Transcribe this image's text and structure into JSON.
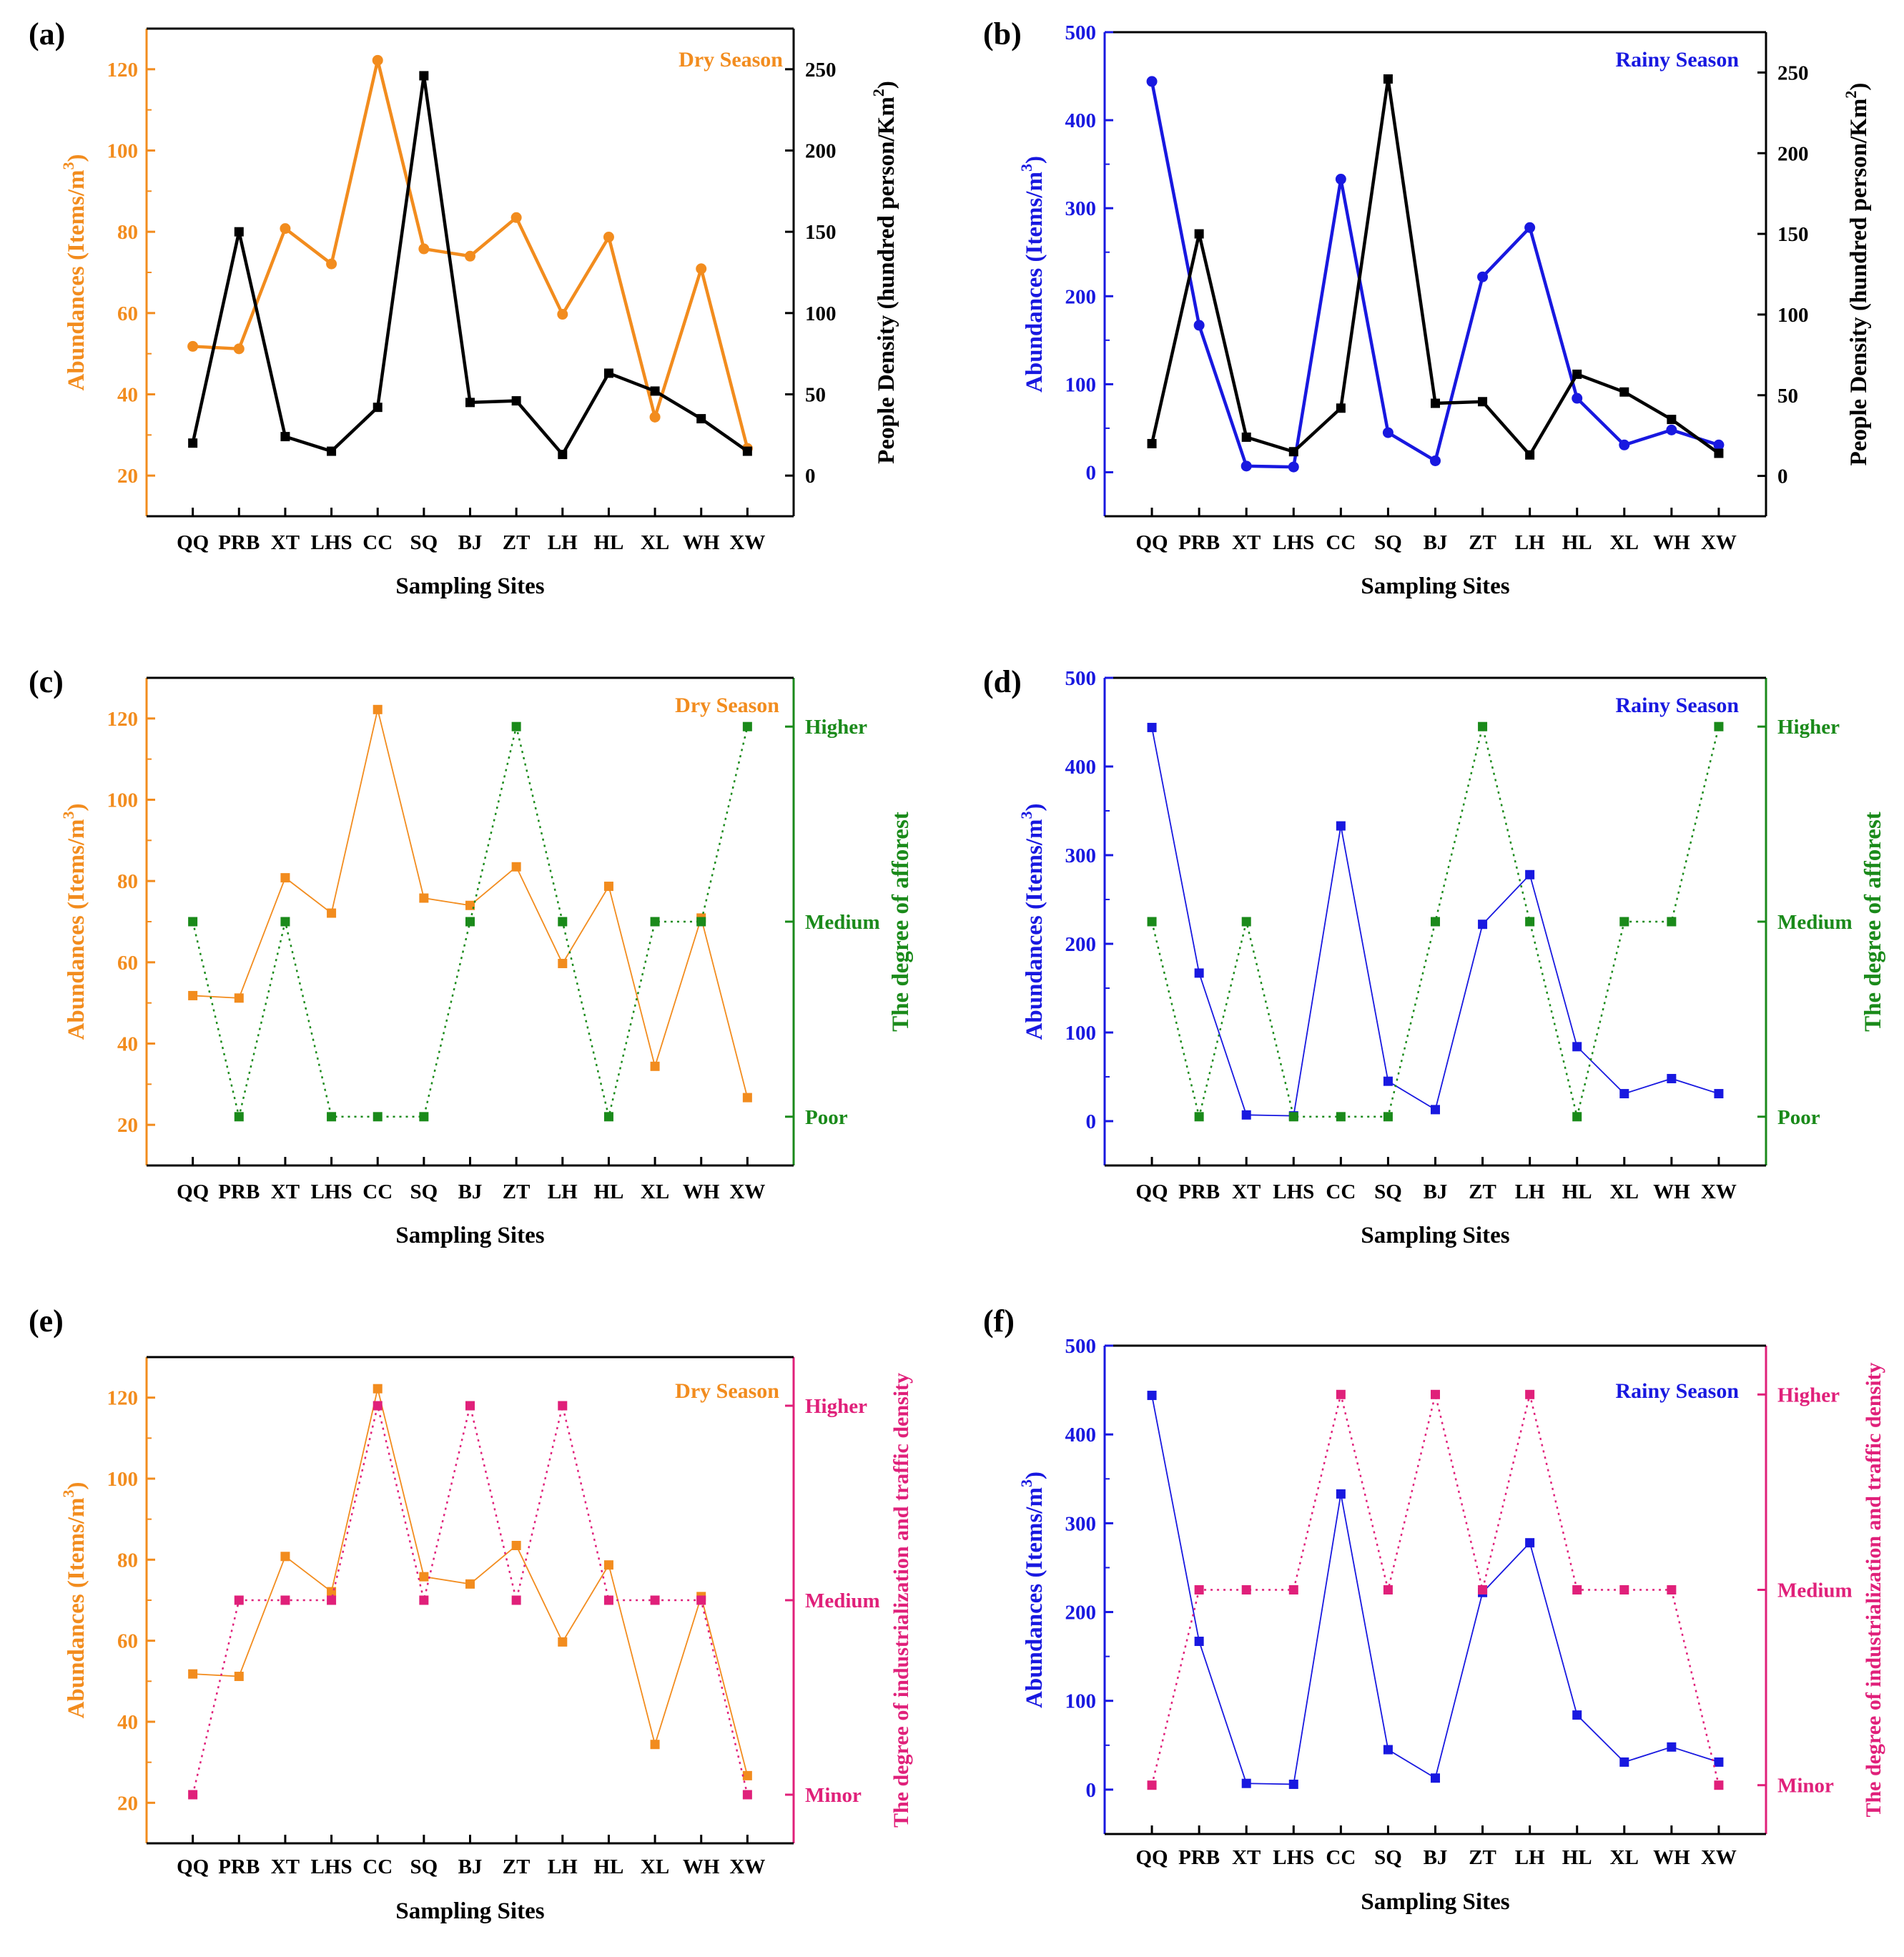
{
  "figure": {
    "sites": [
      "QQ",
      "PRB",
      "XT",
      "LHS",
      "CC",
      "SQ",
      "BJ",
      "ZT",
      "LH",
      "HL",
      "XL",
      "WH",
      "XW"
    ]
  },
  "chart_data": [
    {
      "panel": "(a)",
      "type": "line",
      "title": "Dry Season",
      "xlabel": "Sampling Sites",
      "ylabel": "Abundances (Items/m3)",
      "y2label": "People Density (hundred person/Km2)",
      "categories": [
        "QQ",
        "PRB",
        "XT",
        "LHS",
        "CC",
        "SQ",
        "BJ",
        "ZT",
        "LH",
        "HL",
        "XL",
        "WH",
        "XW"
      ],
      "ylim": [
        10,
        130
      ],
      "yticks": [
        20,
        40,
        60,
        80,
        100,
        120
      ],
      "y2lim": [
        -25,
        275
      ],
      "y2ticks": [
        0,
        50,
        100,
        150,
        200,
        250
      ],
      "series": [
        {
          "name": "Abundances",
          "axis": "left",
          "marker": "circle",
          "style": "solid",
          "color": "#F28C1E",
          "values": [
            51.8,
            51.2,
            80.8,
            72.1,
            122.2,
            75.8,
            74.0,
            83.5,
            59.7,
            78.7,
            34.4,
            70.9,
            26.7
          ]
        },
        {
          "name": "People Density",
          "axis": "right",
          "marker": "square",
          "style": "solid",
          "color": "#000000",
          "values": [
            20,
            150,
            24,
            15,
            42,
            246,
            45,
            46,
            13,
            63,
            52,
            35,
            15
          ]
        }
      ]
    },
    {
      "panel": "(b)",
      "type": "line",
      "title": "Rainy Season",
      "xlabel": "Sampling Sites",
      "ylabel": "Abundances (Items/m3)",
      "y2label": "People Density (hundred person/Km2)",
      "categories": [
        "QQ",
        "PRB",
        "XT",
        "LHS",
        "CC",
        "SQ",
        "BJ",
        "ZT",
        "LH",
        "HL",
        "XL",
        "WH",
        "XW"
      ],
      "ylim": [
        -50,
        500
      ],
      "yticks": [
        0,
        100,
        200,
        300,
        400,
        500
      ],
      "y2lim": [
        -25,
        275
      ],
      "y2ticks": [
        0,
        50,
        100,
        150,
        200,
        250
      ],
      "series": [
        {
          "name": "Abundances",
          "axis": "left",
          "marker": "circle",
          "style": "solid",
          "color": "#1818E0",
          "values": [
            444,
            167,
            7,
            6,
            333,
            45,
            13,
            222,
            278,
            84,
            31,
            48,
            31
          ]
        },
        {
          "name": "People Density",
          "axis": "right",
          "marker": "square",
          "style": "solid",
          "color": "#000000",
          "values": [
            20,
            150,
            24,
            15,
            42,
            246,
            45,
            46,
            13,
            63,
            52,
            35,
            14
          ]
        }
      ]
    },
    {
      "panel": "(c)",
      "type": "line",
      "title": "Dry Season",
      "xlabel": "Sampling Sites",
      "ylabel": "Abundances (Items/m3)",
      "y2label": "The degree of afforest",
      "categories": [
        "QQ",
        "PRB",
        "XT",
        "LHS",
        "CC",
        "SQ",
        "BJ",
        "ZT",
        "LH",
        "HL",
        "XL",
        "WH",
        "XW"
      ],
      "ylim": [
        10,
        130
      ],
      "yticks": [
        20,
        40,
        60,
        80,
        100,
        120
      ],
      "y2lim": [
        -0.25,
        2.25
      ],
      "y2ticks": [
        0,
        1,
        2
      ],
      "y2ticklabels": [
        "Poor",
        "Medium",
        "Higher"
      ],
      "series": [
        {
          "name": "Abundances",
          "axis": "left",
          "marker": "square",
          "style": "thin",
          "color": "#F28C1E",
          "values": [
            51.8,
            51.2,
            80.8,
            72.1,
            122.2,
            75.8,
            74.0,
            83.5,
            59.7,
            78.7,
            34.4,
            70.9,
            26.7
          ]
        },
        {
          "name": "The degree of afforest",
          "axis": "right",
          "marker": "square",
          "style": "dotted",
          "color": "#1A8A1A",
          "values": [
            1,
            0,
            1,
            0,
            0,
            0,
            1,
            2,
            1,
            0,
            1,
            1,
            2
          ]
        }
      ]
    },
    {
      "panel": "(d)",
      "type": "line",
      "title": "Rainy Season",
      "xlabel": "Sampling Sites",
      "ylabel": "Abundances (Items/m3)",
      "y2label": "The degree of afforest",
      "categories": [
        "QQ",
        "PRB",
        "XT",
        "LHS",
        "CC",
        "SQ",
        "BJ",
        "ZT",
        "LH",
        "HL",
        "XL",
        "WH",
        "XW"
      ],
      "ylim": [
        -50,
        500
      ],
      "yticks": [
        0,
        100,
        200,
        300,
        400,
        500
      ],
      "y2lim": [
        -0.25,
        2.25
      ],
      "y2ticks": [
        0,
        1,
        2
      ],
      "y2ticklabels": [
        "Poor",
        "Medium",
        "Higher"
      ],
      "series": [
        {
          "name": "Abundances",
          "axis": "left",
          "marker": "square",
          "style": "thin",
          "color": "#1818E0",
          "values": [
            444,
            167,
            7,
            6,
            333,
            45,
            13,
            222,
            278,
            84,
            31,
            48,
            31
          ]
        },
        {
          "name": "The degree of afforest",
          "axis": "right",
          "marker": "square",
          "style": "dotted",
          "color": "#1A8A1A",
          "values": [
            1,
            0,
            1,
            0,
            0,
            0,
            1,
            2,
            1,
            0,
            1,
            1,
            2
          ]
        }
      ]
    },
    {
      "panel": "(e)",
      "type": "line",
      "title": "Dry Season",
      "xlabel": "Sampling Sites",
      "ylabel": "Abundances (Items/m3)",
      "y2label": "The degree of industrialization and traffic density",
      "categories": [
        "QQ",
        "PRB",
        "XT",
        "LHS",
        "CC",
        "SQ",
        "BJ",
        "ZT",
        "LH",
        "HL",
        "XL",
        "WH",
        "XW"
      ],
      "ylim": [
        10,
        130
      ],
      "yticks": [
        20,
        40,
        60,
        80,
        100,
        120
      ],
      "y2lim": [
        -0.25,
        2.25
      ],
      "y2ticks": [
        0,
        1,
        2
      ],
      "y2ticklabels": [
        "Minor",
        "Medium",
        "Higher"
      ],
      "series": [
        {
          "name": "Abundances",
          "axis": "left",
          "marker": "square",
          "style": "thin",
          "color": "#F28C1E",
          "values": [
            51.8,
            51.2,
            80.8,
            72.1,
            122.2,
            75.8,
            74.0,
            83.5,
            59.7,
            78.7,
            34.4,
            70.9,
            26.7
          ]
        },
        {
          "name": "The degree of industrialization and traffic density",
          "axis": "right",
          "marker": "square",
          "style": "dotted",
          "color": "#E0207A",
          "values": [
            0,
            1,
            1,
            1,
            2,
            1,
            2,
            1,
            2,
            1,
            1,
            1,
            0
          ]
        }
      ]
    },
    {
      "panel": "(f)",
      "type": "line",
      "title": "Rainy Season",
      "xlabel": "Sampling Sites",
      "ylabel": "Abundances (Items/m3)",
      "y2label": "The degree of industrialization and traffic density",
      "categories": [
        "QQ",
        "PRB",
        "XT",
        "LHS",
        "CC",
        "SQ",
        "BJ",
        "ZT",
        "LH",
        "HL",
        "XL",
        "WH",
        "XW"
      ],
      "ylim": [
        -50,
        500
      ],
      "yticks": [
        0,
        100,
        200,
        300,
        400,
        500
      ],
      "y2lim": [
        -0.25,
        2.25
      ],
      "y2ticks": [
        0,
        1,
        2
      ],
      "y2ticklabels": [
        "Minor",
        "Medium",
        "Higher"
      ],
      "series": [
        {
          "name": "Abundances",
          "axis": "left",
          "marker": "square",
          "style": "thin",
          "color": "#1818E0",
          "values": [
            444,
            167,
            7,
            6,
            333,
            45,
            13,
            222,
            278,
            84,
            31,
            48,
            31
          ]
        },
        {
          "name": "The degree of industrialization and traffic density",
          "axis": "right",
          "marker": "square",
          "style": "dotted",
          "color": "#E0207A",
          "values": [
            0,
            1,
            1,
            1,
            2,
            1,
            2,
            1,
            2,
            1,
            1,
            1,
            0
          ]
        }
      ]
    }
  ]
}
